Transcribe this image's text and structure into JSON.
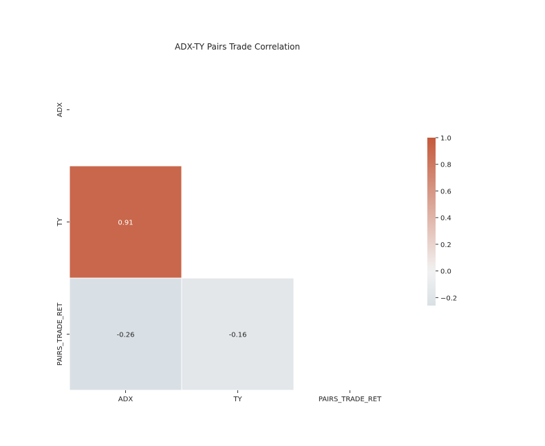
{
  "chart_data": {
    "type": "heatmap",
    "title": "ADX-TY Pairs Trade Correlation",
    "xlabel": "",
    "ylabel": "",
    "rows": [
      "ADX",
      "TY",
      "PAIRS_TRADE_RET"
    ],
    "columns": [
      "ADX",
      "TY",
      "PAIRS_TRADE_RET"
    ],
    "mask": "upper-triangle-including-diagonal",
    "cells": [
      {
        "row": "TY",
        "col": "ADX",
        "value": 0.91,
        "label": "0.91"
      },
      {
        "row": "PAIRS_TRADE_RET",
        "col": "ADX",
        "value": -0.26,
        "label": "-0.26"
      },
      {
        "row": "PAIRS_TRADE_RET",
        "col": "TY",
        "value": -0.16,
        "label": "-0.16"
      }
    ],
    "colorbar": {
      "vmin": -0.26,
      "vmax": 1.0,
      "ticks": [
        1.0,
        0.8,
        0.6,
        0.4,
        0.2,
        0.0,
        -0.2
      ],
      "tick_labels": [
        "1.0",
        "0.8",
        "0.6",
        "0.4",
        "0.2",
        "0.0",
        "−0.2"
      ],
      "colormap": "diverging_palette(230, 20)",
      "color_negative": "#92aec0",
      "color_center": "#f2f2f2",
      "color_positive": "#c4593b"
    }
  }
}
